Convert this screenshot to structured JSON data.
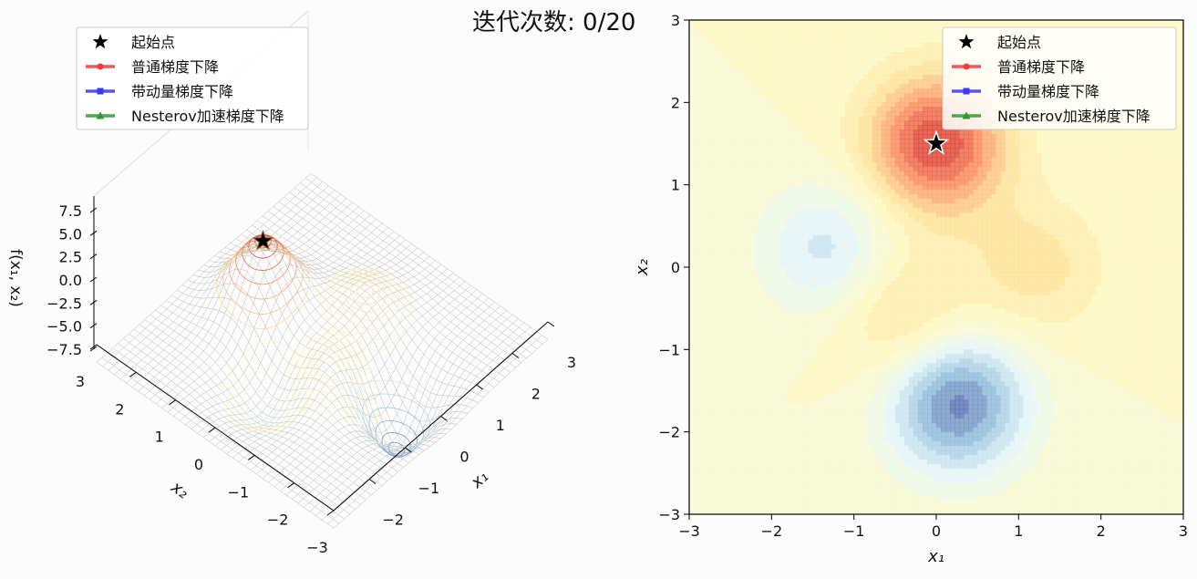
{
  "figure": {
    "title": "迭代次数: 0/20"
  },
  "chart_data": [
    {
      "panel": "left",
      "type": "surface3d",
      "function": "f(x1, x2)",
      "zlabel": "f(x₁, x₂)",
      "xlabel": "x₁",
      "ylabel": "x₂",
      "xlim": [
        -3,
        3
      ],
      "ylim": [
        -3,
        3
      ],
      "zlim": [
        -7.5,
        7.5
      ],
      "x_ticks": [
        "−2",
        "−1",
        "0",
        "1",
        "2",
        "3"
      ],
      "y_ticks": [
        "−3",
        "−2",
        "−1",
        "0",
        "1",
        "2",
        "3"
      ],
      "z_ticks": [
        "7.5",
        "5.0",
        "2.5",
        "0.0",
        "−2.5",
        "−5.0",
        "−7.5"
      ],
      "z_tick_values": [
        7.5,
        5.0,
        2.5,
        0.0,
        -2.5,
        -5.0,
        -7.5
      ],
      "peaks": [
        {
          "x": 0.0,
          "y": 1.5,
          "z": 8.0
        },
        {
          "x": -0.4,
          "y": -0.6,
          "z": 3.0
        },
        {
          "x": 1.2,
          "y": 0.0,
          "z": 2.5
        },
        {
          "x": 0.25,
          "y": -1.65,
          "z": -7.5
        },
        {
          "x": -1.3,
          "y": 0.2,
          "z": -3.5
        }
      ],
      "start_point": {
        "x": 0.0,
        "y": 1.5
      },
      "legend_position": "top-left",
      "legend": [
        {
          "label": "起始点",
          "color": "#000000",
          "marker": "star"
        },
        {
          "label": "普通梯度下降",
          "color": "#f33a3a",
          "marker": "circle"
        },
        {
          "label": "带动量梯度下降",
          "color": "#3a3af0",
          "marker": "square"
        },
        {
          "label": "Nesterov加速梯度下降",
          "color": "#2e9a2e",
          "marker": "triangle"
        }
      ]
    },
    {
      "panel": "right",
      "type": "contour",
      "xlabel": "x₁",
      "ylabel": "x₂",
      "xlim": [
        -3,
        3
      ],
      "ylim": [
        -3,
        3
      ],
      "x_ticks": [
        -3,
        -2,
        -1,
        0,
        1,
        2,
        3
      ],
      "y_ticks": [
        -3,
        -2,
        -1,
        0,
        1,
        2,
        3
      ],
      "x_tick_labels": [
        "−3",
        "−2",
        "−1",
        "0",
        "1",
        "2",
        "3"
      ],
      "y_tick_labels": [
        "−3",
        "−2",
        "−1",
        "0",
        "1",
        "2",
        "3"
      ],
      "colormap": [
        "#4a5fa8",
        "#91bfdb",
        "#e0f3f8",
        "#fefcc8",
        "#fee090",
        "#fc8d59",
        "#d73027"
      ],
      "regions": [
        {
          "kind": "max",
          "x": 0.0,
          "y": 1.5,
          "level": 8.0
        },
        {
          "kind": "max",
          "x": -0.4,
          "y": -0.6,
          "level": 3.0
        },
        {
          "kind": "max",
          "x": 1.2,
          "y": 0.0,
          "level": 2.5
        },
        {
          "kind": "min",
          "x": 0.25,
          "y": -1.65,
          "level": -7.5
        },
        {
          "kind": "min",
          "x": -1.3,
          "y": 0.2,
          "level": -3.5
        }
      ],
      "start_point": {
        "x": 0.0,
        "y": 1.5
      },
      "legend_position": "top-right",
      "legend": [
        {
          "label": "起始点",
          "color": "#000000",
          "marker": "star"
        },
        {
          "label": "普通梯度下降",
          "color": "#f33a3a",
          "marker": "circle"
        },
        {
          "label": "带动量梯度下降",
          "color": "#3a3af0",
          "marker": "square"
        },
        {
          "label": "Nesterov加速梯度下降",
          "color": "#2e9a2e",
          "marker": "triangle"
        }
      ]
    }
  ]
}
